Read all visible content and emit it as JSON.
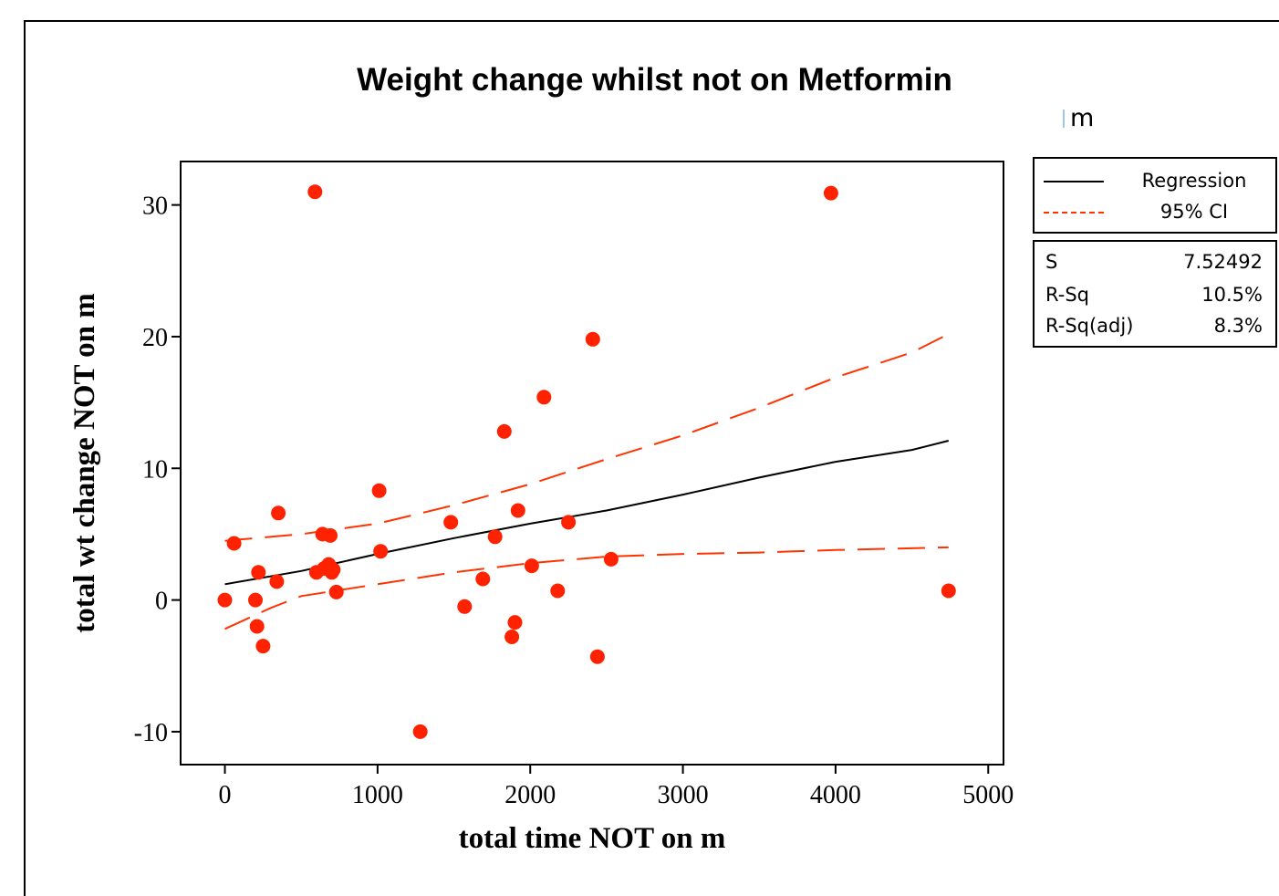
{
  "title": "Weight change whilst not on Metformin",
  "subtitle": "m",
  "legend": {
    "items": [
      {
        "label": "Regression",
        "style": "solid",
        "color": "#000000"
      },
      {
        "label": "95% CI",
        "style": "dashed",
        "color": "#ff3300"
      }
    ]
  },
  "stats": [
    {
      "name": "S",
      "value": "7.52492"
    },
    {
      "name": "R-Sq",
      "value": "10.5%"
    },
    {
      "name": "R-Sq(adj)",
      "value": "8.3%"
    }
  ],
  "colors": {
    "points": "#ff2200",
    "regression": "#000000",
    "ci": "#ff3300"
  },
  "chart_data": {
    "type": "scatter",
    "title": "Weight change whilst not on Metformin",
    "xlabel": "total time NOT on m",
    "ylabel": "total wt change NOT on m",
    "xlim": [
      -290,
      5100
    ],
    "ylim": [
      -12.5,
      33.3
    ],
    "xticks": [
      0,
      1000,
      2000,
      3000,
      4000,
      5000
    ],
    "yticks": [
      -10,
      0,
      10,
      20,
      30
    ],
    "grid": false,
    "legend_position": "right",
    "series": [
      {
        "name": "points",
        "points": [
          [
            0,
            0
          ],
          [
            60,
            4.3
          ],
          [
            200,
            0
          ],
          [
            210,
            -2
          ],
          [
            220,
            2.1
          ],
          [
            250,
            -3.5
          ],
          [
            340,
            1.4
          ],
          [
            350,
            6.6
          ],
          [
            590,
            31
          ],
          [
            600,
            2.1
          ],
          [
            640,
            5
          ],
          [
            650,
            2.4
          ],
          [
            680,
            2.7
          ],
          [
            690,
            4.9
          ],
          [
            700,
            2.1
          ],
          [
            710,
            2.3
          ],
          [
            730,
            0.6
          ],
          [
            1010,
            8.3
          ],
          [
            1020,
            3.7
          ],
          [
            1280,
            -10
          ],
          [
            1480,
            5.9
          ],
          [
            1570,
            -0.5
          ],
          [
            1690,
            1.6
          ],
          [
            1770,
            4.8
          ],
          [
            1830,
            12.8
          ],
          [
            1880,
            -2.8
          ],
          [
            1900,
            -1.7
          ],
          [
            1920,
            6.8
          ],
          [
            2010,
            2.6
          ],
          [
            2090,
            15.4
          ],
          [
            2180,
            0.7
          ],
          [
            2250,
            5.9
          ],
          [
            2410,
            19.8
          ],
          [
            2440,
            -4.3
          ],
          [
            2530,
            3.1
          ],
          [
            3970,
            30.9
          ],
          [
            4740,
            0.7
          ]
        ]
      },
      {
        "name": "Regression",
        "points": [
          [
            0,
            1.2
          ],
          [
            500,
            2.2
          ],
          [
            1000,
            3.5
          ],
          [
            1500,
            4.7
          ],
          [
            2000,
            5.8
          ],
          [
            2500,
            6.8
          ],
          [
            3000,
            8.0
          ],
          [
            3500,
            9.3
          ],
          [
            4000,
            10.5
          ],
          [
            4500,
            11.4
          ],
          [
            4740,
            12.1
          ]
        ]
      },
      {
        "name": "95% CI upper",
        "points": [
          [
            0,
            4.5
          ],
          [
            500,
            5.0
          ],
          [
            1000,
            5.8
          ],
          [
            1500,
            7.2
          ],
          [
            2000,
            8.8
          ],
          [
            2500,
            10.7
          ],
          [
            3000,
            12.5
          ],
          [
            3500,
            14.6
          ],
          [
            4000,
            16.9
          ],
          [
            4500,
            18.8
          ],
          [
            4740,
            20.2
          ]
        ]
      },
      {
        "name": "95% CI lower",
        "points": [
          [
            0,
            -2.2
          ],
          [
            300,
            -0.6
          ],
          [
            500,
            0.3
          ],
          [
            1000,
            1.2
          ],
          [
            1500,
            2.1
          ],
          [
            2000,
            2.8
          ],
          [
            2500,
            3.3
          ],
          [
            3000,
            3.5
          ],
          [
            3500,
            3.6
          ],
          [
            4000,
            3.8
          ],
          [
            4740,
            4.0
          ]
        ]
      }
    ]
  }
}
